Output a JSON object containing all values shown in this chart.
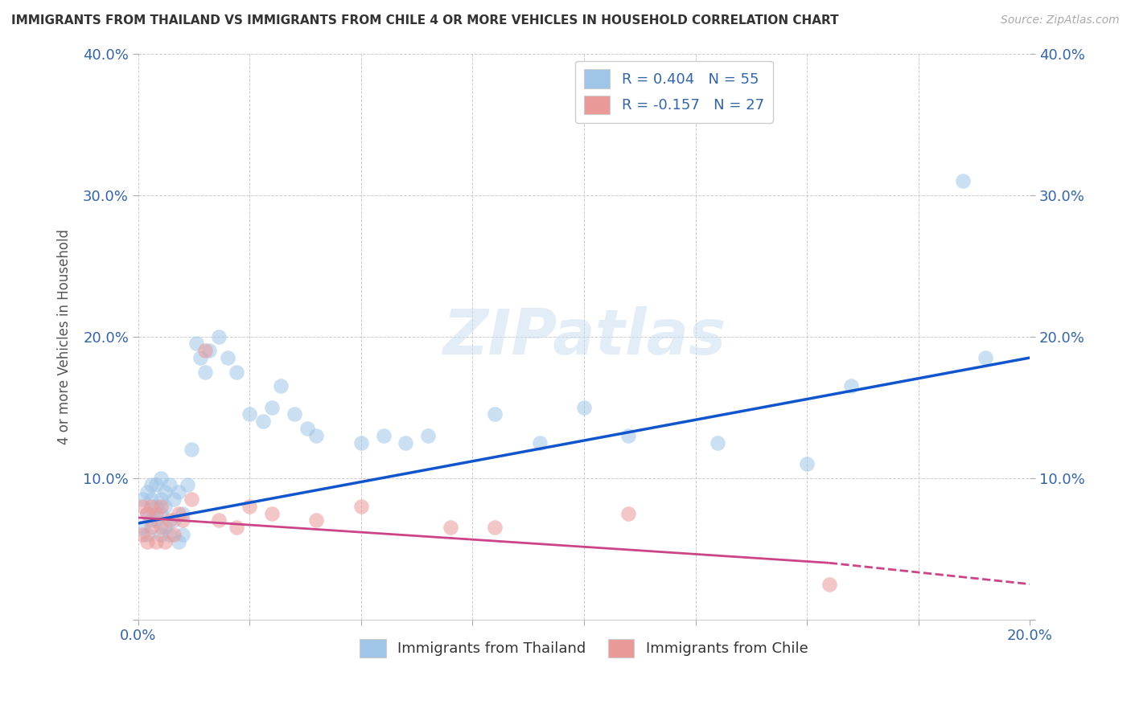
{
  "title": "IMMIGRANTS FROM THAILAND VS IMMIGRANTS FROM CHILE 4 OR MORE VEHICLES IN HOUSEHOLD CORRELATION CHART",
  "source": "Source: ZipAtlas.com",
  "ylabel": "4 or more Vehicles in Household",
  "legend_thailand": "Immigrants from Thailand",
  "legend_chile": "Immigrants from Chile",
  "R_thailand": 0.404,
  "N_thailand": 55,
  "R_chile": -0.157,
  "N_chile": 27,
  "xlim": [
    0.0,
    0.2
  ],
  "ylim": [
    0.0,
    0.4
  ],
  "xtick_pos": [
    0.0,
    0.025,
    0.05,
    0.075,
    0.1,
    0.125,
    0.15,
    0.175,
    0.2
  ],
  "xtick_labels": [
    "0.0%",
    "",
    "",
    "",
    "",
    "",
    "",
    "",
    "20.0%"
  ],
  "ytick_pos": [
    0.0,
    0.1,
    0.2,
    0.3,
    0.4
  ],
  "ytick_labels": [
    "",
    "10.0%",
    "20.0%",
    "30.0%",
    "40.0%"
  ],
  "color_thailand": "#9fc5e8",
  "color_chile": "#ea9999",
  "color_line_thailand": "#1155cc",
  "color_line_chile": "#cc4488",
  "watermark_text": "ZIPatlas",
  "thailand_x": [
    0.001,
    0.001,
    0.002,
    0.002,
    0.002,
    0.003,
    0.003,
    0.003,
    0.004,
    0.004,
    0.004,
    0.005,
    0.005,
    0.005,
    0.005,
    0.006,
    0.006,
    0.006,
    0.007,
    0.007,
    0.008,
    0.008,
    0.009,
    0.009,
    0.01,
    0.01,
    0.011,
    0.012,
    0.013,
    0.014,
    0.015,
    0.016,
    0.018,
    0.02,
    0.022,
    0.025,
    0.028,
    0.03,
    0.032,
    0.035,
    0.038,
    0.04,
    0.05,
    0.055,
    0.06,
    0.065,
    0.08,
    0.09,
    0.1,
    0.11,
    0.13,
    0.15,
    0.16,
    0.185,
    0.19
  ],
  "thailand_y": [
    0.085,
    0.065,
    0.075,
    0.09,
    0.06,
    0.07,
    0.085,
    0.095,
    0.07,
    0.08,
    0.095,
    0.06,
    0.075,
    0.085,
    0.1,
    0.065,
    0.08,
    0.09,
    0.06,
    0.095,
    0.07,
    0.085,
    0.055,
    0.09,
    0.06,
    0.075,
    0.095,
    0.12,
    0.195,
    0.185,
    0.175,
    0.19,
    0.2,
    0.185,
    0.175,
    0.145,
    0.14,
    0.15,
    0.165,
    0.145,
    0.135,
    0.13,
    0.125,
    0.13,
    0.125,
    0.13,
    0.145,
    0.125,
    0.15,
    0.13,
    0.125,
    0.11,
    0.165,
    0.31,
    0.185
  ],
  "chile_x": [
    0.001,
    0.001,
    0.002,
    0.002,
    0.003,
    0.003,
    0.004,
    0.004,
    0.005,
    0.005,
    0.006,
    0.007,
    0.008,
    0.009,
    0.01,
    0.012,
    0.015,
    0.018,
    0.022,
    0.025,
    0.03,
    0.04,
    0.05,
    0.07,
    0.08,
    0.11,
    0.155
  ],
  "chile_y": [
    0.06,
    0.08,
    0.055,
    0.075,
    0.065,
    0.08,
    0.055,
    0.075,
    0.065,
    0.08,
    0.055,
    0.07,
    0.06,
    0.075,
    0.07,
    0.085,
    0.19,
    0.07,
    0.065,
    0.08,
    0.075,
    0.07,
    0.08,
    0.065,
    0.065,
    0.075,
    0.025
  ]
}
